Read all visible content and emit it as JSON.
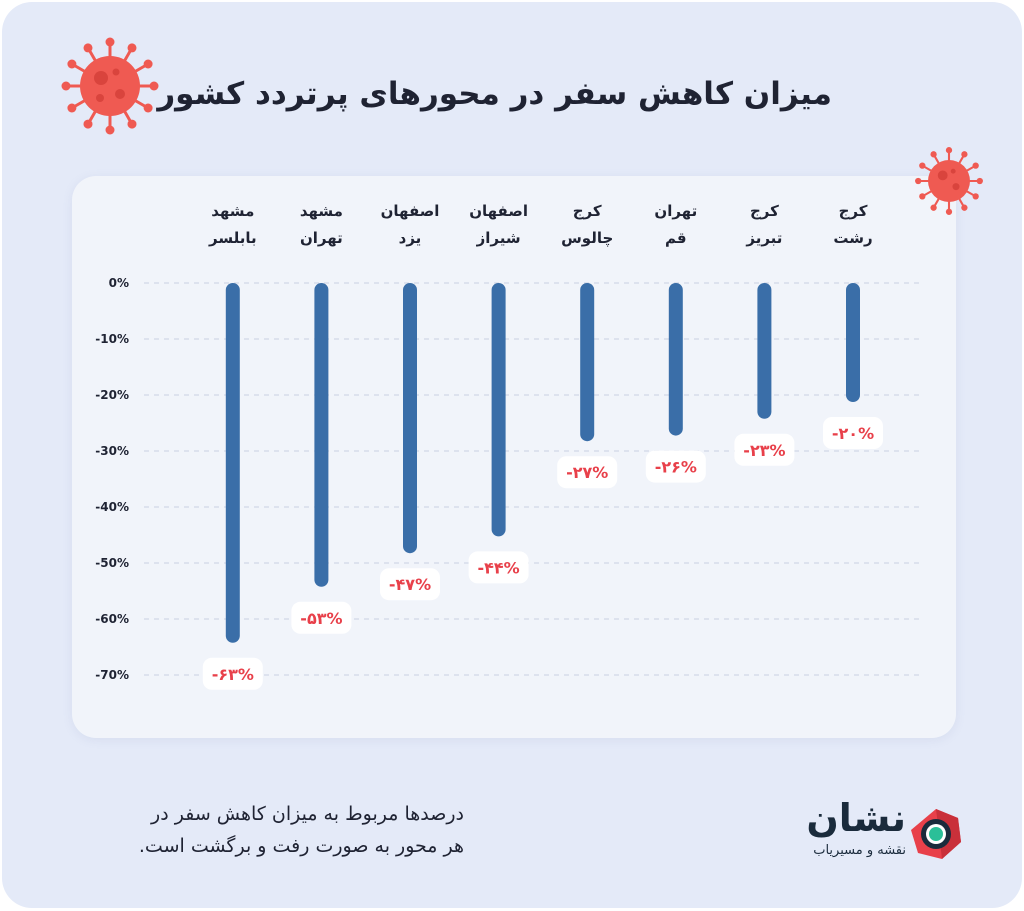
{
  "title": "میزان کاهش سفر در محورهای پرتردد کشور",
  "footnote": {
    "line1": "درصدها مربوط به میزان کاهش سفر در",
    "line2": "هر محور به صورت رفت و برگشت است."
  },
  "brand": {
    "name": "نشان",
    "tagline": "نقشه و مسیریاب"
  },
  "colors": {
    "bar": "#3a6ea8",
    "value_text": "#e8404a",
    "background": "#e4eaf8",
    "card": "#f1f4fa",
    "virus": "#ef5a52"
  },
  "icons": [
    "virus-icon",
    "nshan-logo-icon"
  ],
  "chart_data": {
    "type": "bar",
    "orientation": "vertical-downward",
    "title": "میزان کاهش سفر در محورهای پرتردد کشور",
    "categories": [
      {
        "line1": "کرج",
        "line2": "رشت"
      },
      {
        "line1": "کرج",
        "line2": "تبریز"
      },
      {
        "line1": "تهران",
        "line2": "قم"
      },
      {
        "line1": "کرج",
        "line2": "چالوس"
      },
      {
        "line1": "اصفهان",
        "line2": "شیراز"
      },
      {
        "line1": "اصفهان",
        "line2": "یزد"
      },
      {
        "line1": "مشهد",
        "line2": "تهران"
      },
      {
        "line1": "مشهد",
        "line2": "بابلسر"
      }
    ],
    "values": [
      -20,
      -23,
      -26,
      -27,
      -44,
      -47,
      -53,
      -63
    ],
    "value_labels": [
      "-۲۰%",
      "-۲۳%",
      "-۲۶%",
      "-۲۷%",
      "-۴۴%",
      "-۴۷%",
      "-۵۳%",
      "-۶۳%"
    ],
    "yticks": [
      0,
      -10,
      -20,
      -30,
      -40,
      -50,
      -60,
      -70
    ],
    "ytick_labels": [
      "0%",
      "-10%",
      "-20%",
      "-30%",
      "-40%",
      "-50%",
      "-60%",
      "-70%"
    ],
    "ylim": [
      -70,
      0
    ],
    "grid": true,
    "legend": "none"
  }
}
